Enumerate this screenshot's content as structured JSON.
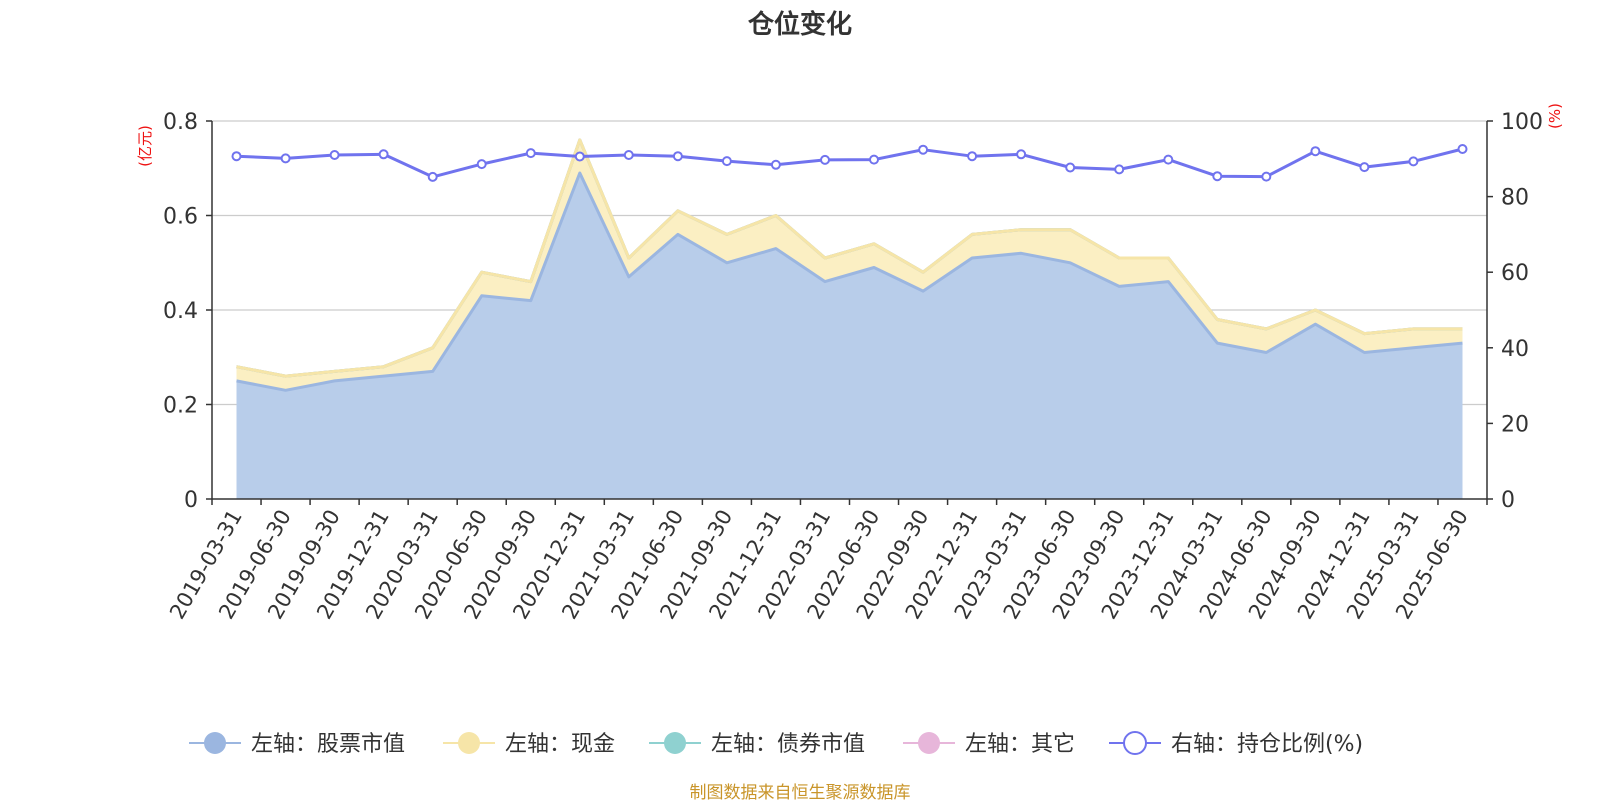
{
  "footer": "制图数据来自恒生聚源数据库",
  "chart_data": {
    "type": "area",
    "title": "仓位变化",
    "left_unit": "(亿元)",
    "right_unit": "(%)",
    "ylim_left": [
      0,
      0.8
    ],
    "ylim_right": [
      0,
      100
    ],
    "yticks_left": [
      "0",
      "0.2",
      "0.4",
      "0.6",
      "0.8"
    ],
    "yticks_right": [
      "0",
      "20",
      "40",
      "60",
      "80",
      "100"
    ],
    "grid": true,
    "legend_position": "bottom",
    "categories": [
      "2019-03-31",
      "2019-06-30",
      "2019-09-30",
      "2019-12-31",
      "2020-03-31",
      "2020-06-30",
      "2020-09-30",
      "2020-12-31",
      "2021-03-31",
      "2021-06-30",
      "2021-09-30",
      "2021-12-31",
      "2022-03-31",
      "2022-06-30",
      "2022-09-30",
      "2022-12-31",
      "2023-03-31",
      "2023-06-30",
      "2023-09-30",
      "2023-12-31",
      "2024-03-31",
      "2024-06-30",
      "2024-09-30",
      "2024-12-31",
      "2025-03-31",
      "2025-06-30"
    ],
    "series": [
      {
        "name": "左轴：股票市值",
        "axis": "left",
        "color": "#9bb6e0",
        "fill": "#b8cdea",
        "values": [
          0.25,
          0.23,
          0.25,
          0.26,
          0.27,
          0.43,
          0.42,
          0.69,
          0.47,
          0.56,
          0.5,
          0.53,
          0.46,
          0.49,
          0.44,
          0.51,
          0.52,
          0.5,
          0.45,
          0.46,
          0.33,
          0.31,
          0.37,
          0.31,
          0.32,
          0.33
        ]
      },
      {
        "name": "左轴：现金",
        "axis": "left",
        "color": "#f6e5a8",
        "fill": "#fbefc3",
        "values": [
          0.03,
          0.03,
          0.02,
          0.02,
          0.05,
          0.05,
          0.04,
          0.07,
          0.04,
          0.05,
          0.06,
          0.07,
          0.05,
          0.05,
          0.04,
          0.05,
          0.05,
          0.07,
          0.06,
          0.05,
          0.05,
          0.05,
          0.03,
          0.04,
          0.04,
          0.03
        ]
      },
      {
        "name": "左轴：债券市值",
        "axis": "left",
        "color": "#8fd1d0",
        "fill": "#a9dedd",
        "values": [
          0,
          0,
          0,
          0,
          0,
          0,
          0,
          0,
          0,
          0,
          0,
          0,
          0,
          0,
          0,
          0,
          0,
          0,
          0,
          0,
          0,
          0,
          0,
          0,
          0,
          0
        ]
      },
      {
        "name": "左轴：其它",
        "axis": "left",
        "color": "#e7b6da",
        "fill": "#f1cfe7",
        "values": [
          0,
          0,
          0,
          0,
          0,
          0,
          0,
          0,
          0,
          0,
          0,
          0,
          0,
          0,
          0,
          0,
          0,
          0,
          0,
          0,
          0,
          0,
          0,
          0,
          0,
          0
        ]
      },
      {
        "name": "右轴：持仓比例(%)",
        "axis": "right",
        "color": "#7073ee",
        "values": [
          90.7,
          90.1,
          91.0,
          91.2,
          85.2,
          88.6,
          91.5,
          90.6,
          91.0,
          90.7,
          89.4,
          88.4,
          89.7,
          89.8,
          92.4,
          90.7,
          91.2,
          87.7,
          87.2,
          89.8,
          85.4,
          85.3,
          92.0,
          87.8,
          89.3,
          92.6
        ]
      }
    ]
  }
}
